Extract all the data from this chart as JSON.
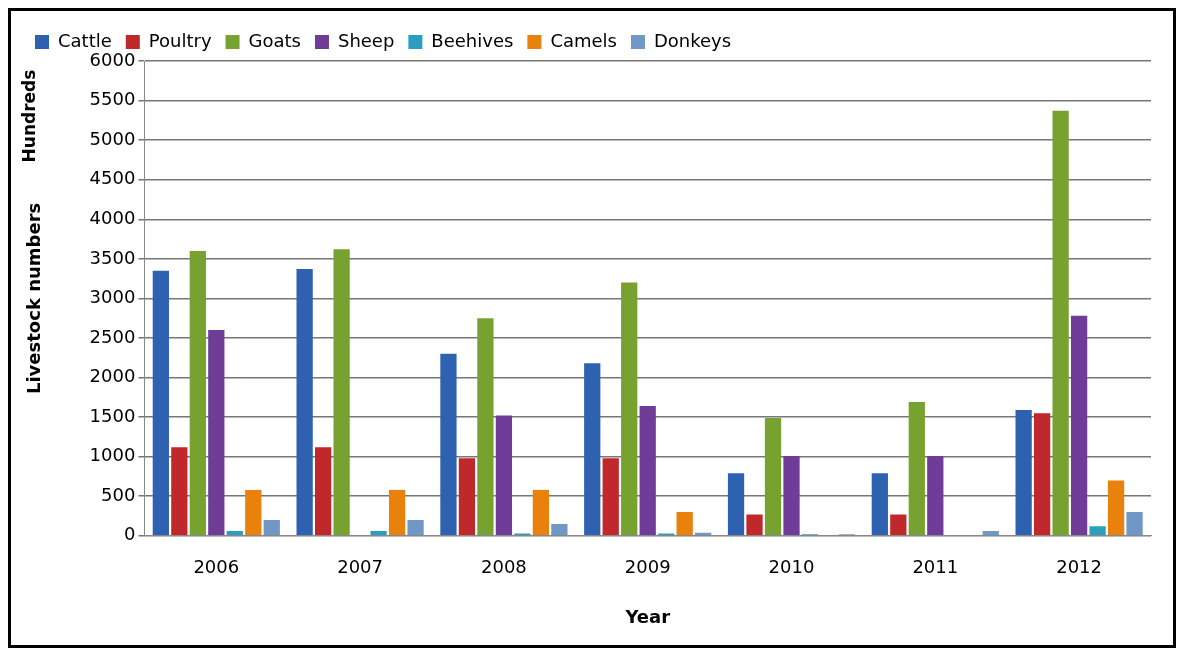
{
  "chart_data": {
    "type": "bar",
    "xlabel": "Year",
    "ylabel": "Livestock numbers",
    "annotations": [
      "Hundreds"
    ],
    "categories": [
      "2006",
      "2007",
      "2008",
      "2009",
      "2010",
      "2011",
      "2012"
    ],
    "ylim": [
      0,
      6000
    ],
    "yticks": [
      0,
      500,
      1000,
      1500,
      2000,
      2500,
      3000,
      3500,
      4000,
      4500,
      5000,
      5500,
      6000
    ],
    "grid": "y",
    "legend": "top",
    "series": [
      {
        "name": "Cattle",
        "color": "#2e62b0",
        "values": [
          3350,
          3370,
          2300,
          2180,
          790,
          790,
          1590
        ]
      },
      {
        "name": "Poultry",
        "color": "#c0282c",
        "values": [
          1120,
          1120,
          980,
          980,
          270,
          270,
          1550
        ]
      },
      {
        "name": "Goats",
        "color": "#78a22f",
        "values": [
          3600,
          3620,
          2750,
          3200,
          1490,
          1690,
          5370
        ]
      },
      {
        "name": "Sheep",
        "color": "#6f3d97",
        "values": [
          2600,
          0,
          1520,
          1640,
          1010,
          1010,
          2780
        ]
      },
      {
        "name": "Beehives",
        "color": "#2b9fc0",
        "values": [
          60,
          60,
          30,
          30,
          20,
          0,
          120
        ]
      },
      {
        "name": "Camels",
        "color": "#e8820c",
        "values": [
          580,
          580,
          580,
          300,
          0,
          null,
          700
        ]
      },
      {
        "name": "Donkeys",
        "color": "#6f98c6",
        "values": [
          200,
          200,
          150,
          40,
          20,
          60,
          300
        ]
      }
    ]
  }
}
